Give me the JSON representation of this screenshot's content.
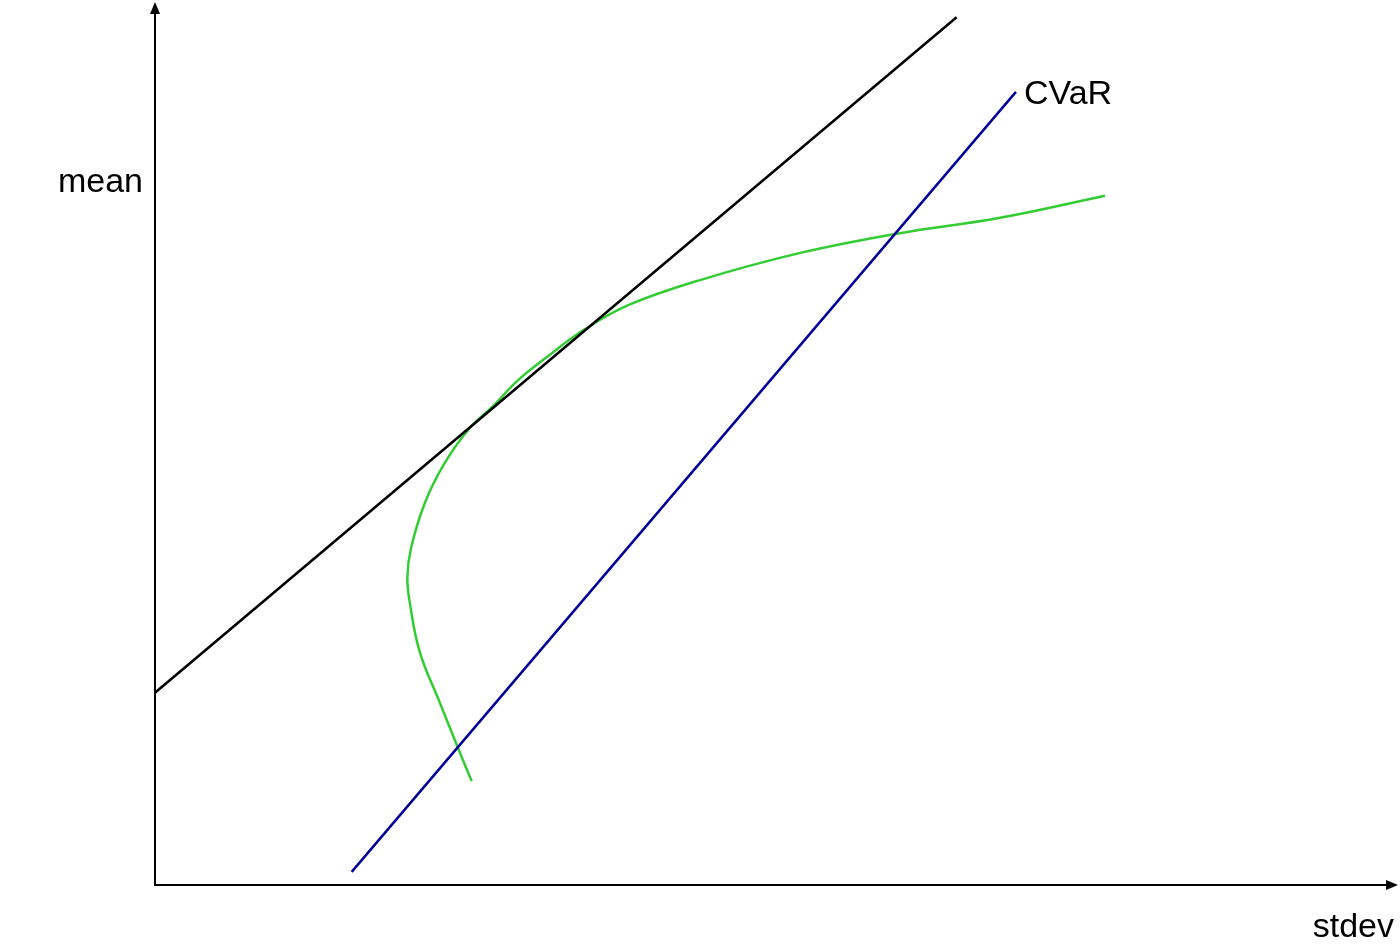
{
  "chart_data": {
    "type": "line",
    "x_label": "stdev",
    "y_label": "mean",
    "xlim": [
      0,
      10
    ],
    "ylim": [
      0,
      11.4
    ],
    "tick_labels": false,
    "grid": false,
    "series": [
      {
        "color": "#000000",
        "x": [
          0,
          6.48
        ],
        "values": [
          2.5,
          11.28
        ]
      },
      {
        "name": "CVaR",
        "color": "#000099",
        "x": [
          1.59,
          6.96
        ],
        "values": [
          0.17,
          10.31
        ]
      },
      {
        "color": "#33cc33",
        "x": [
          2.56,
          2.46,
          2.3,
          2.14,
          2.06,
          2.04,
          2.07,
          2.18,
          2.34,
          2.54,
          2.73,
          2.94,
          3.19,
          3.47,
          3.83,
          4.4,
          5.2,
          6.01,
          6.82,
          7.68
        ],
        "values": [
          1.35,
          1.74,
          2.38,
          3.03,
          3.67,
          4.0,
          4.38,
          4.96,
          5.48,
          5.93,
          6.22,
          6.57,
          6.89,
          7.22,
          7.54,
          7.86,
          8.21,
          8.47,
          8.67,
          8.96
        ]
      }
    ]
  }
}
